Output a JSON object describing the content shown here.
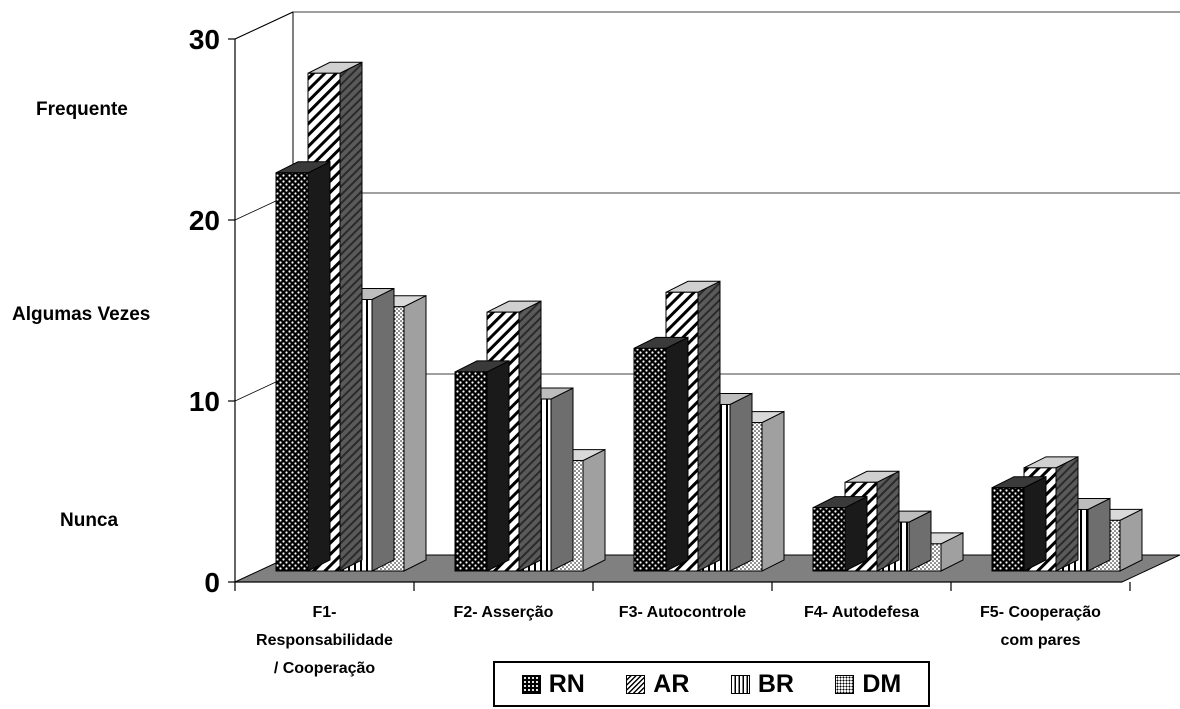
{
  "chart_data": {
    "type": "bar",
    "categories": [
      "F1- Responsabilidade / Cooperação",
      "F2- Asserção",
      "F3- Autocontrole",
      "F4- Autodefesa",
      "F5- Cooperação com pares"
    ],
    "category_lines": [
      [
        "F1-",
        "Responsabilidade",
        "/ Cooperação"
      ],
      [
        "F2- Asserção"
      ],
      [
        "F3- Autocontrole"
      ],
      [
        "F4- Autodefesa"
      ],
      [
        "F5- Cooperação",
        "com pares"
      ]
    ],
    "series": [
      {
        "name": "RN",
        "values": [
          22,
          11,
          12.3,
          3.5,
          4.6
        ]
      },
      {
        "name": "AR",
        "values": [
          27.5,
          14.3,
          15.4,
          4.9,
          5.7
        ]
      },
      {
        "name": "BR",
        "values": [
          15,
          9.5,
          9.2,
          2.7,
          3.4
        ]
      },
      {
        "name": "DM",
        "values": [
          14.6,
          6.1,
          8.2,
          1.5,
          2.8
        ]
      }
    ],
    "yticks": [
      "0",
      "10",
      "20",
      "30"
    ],
    "ylim": [
      0,
      30
    ],
    "grid": true,
    "legend_position": "bottom",
    "title": "",
    "xlabel": "",
    "ylabel": "",
    "side_labels": {
      "frequente": "Frequente",
      "algumas_vezes": "Algumas Vezes",
      "nunca": "Nunca"
    },
    "colors": {
      "floor": "#808080",
      "side_dark": "#808080",
      "top_light": "#c0c0c0"
    }
  }
}
